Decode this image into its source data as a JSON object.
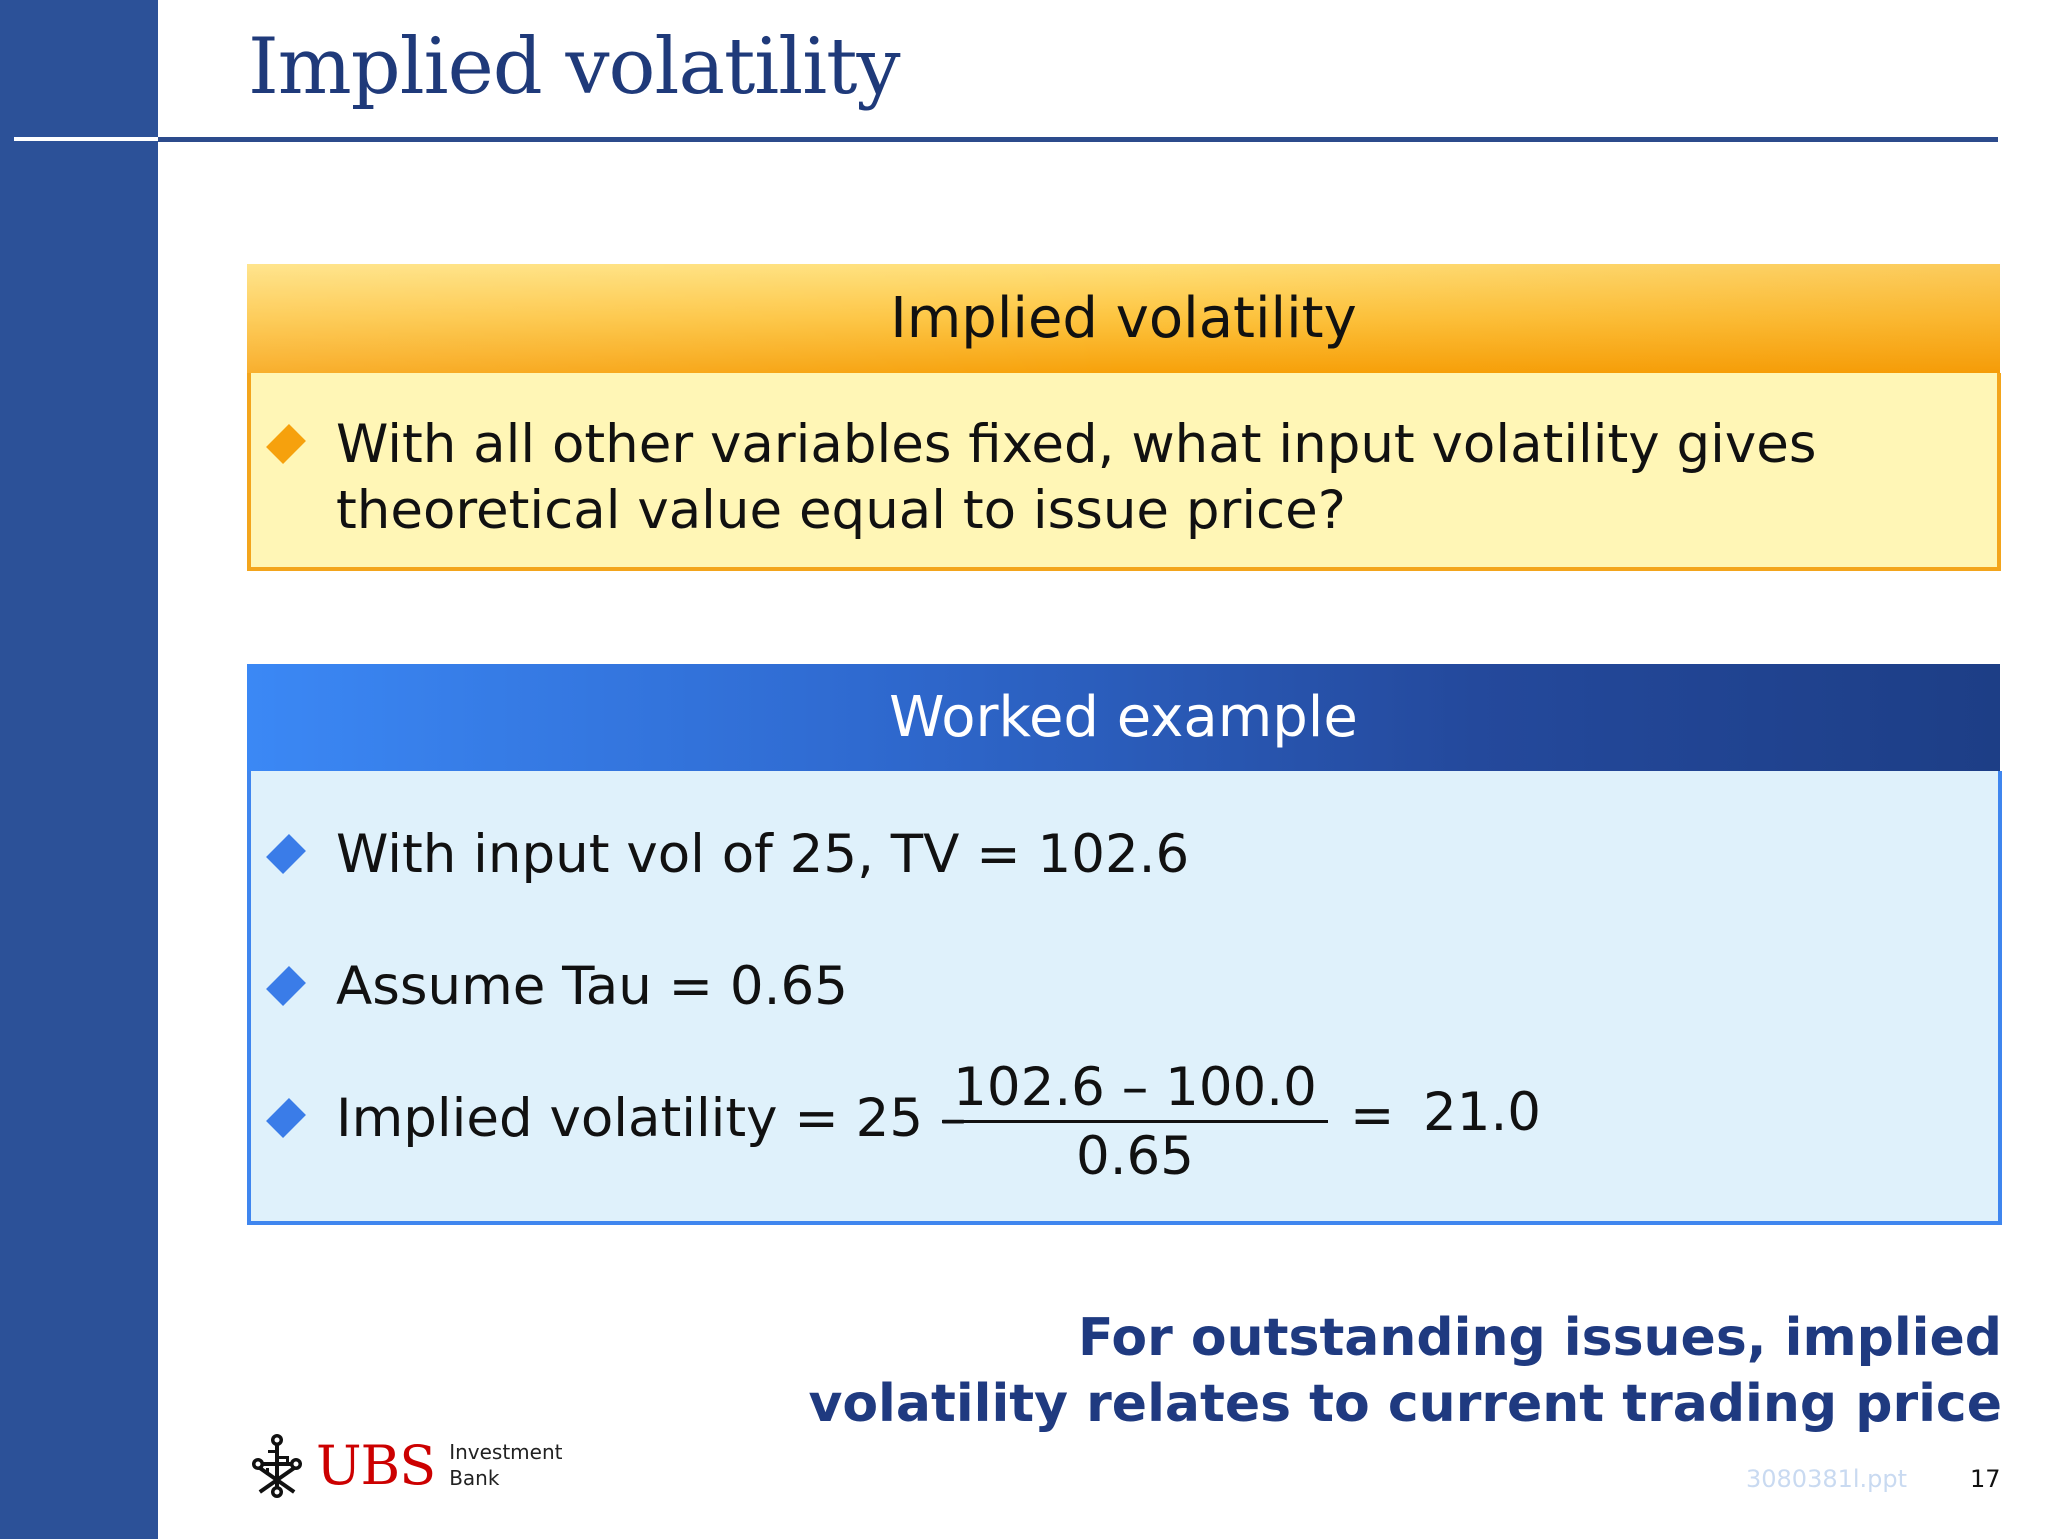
{
  "slide": {
    "title": "Implied volatility"
  },
  "definition_box": {
    "header": "Implied volatility",
    "bullets": [
      {
        "line1": "With all other variables fixed, what input volatility gives",
        "line2": "theoretical value equal to issue price?"
      }
    ]
  },
  "example_box": {
    "header": "Worked example",
    "bullets": [
      "With input vol of 25, TV = 102.6",
      "Assume Tau = 0.65",
      "Implied volatility = 25 –"
    ],
    "fraction": {
      "numerator": "102.6 – 100.0",
      "denominator": "0.65"
    },
    "equals": "=",
    "result": "21.0"
  },
  "takeaway": {
    "line1": "For outstanding issues, implied",
    "line2": "volatility relates to current trading price"
  },
  "footer": {
    "logo_text": "UBS",
    "logo_sub_line1": "Investment",
    "logo_sub_line2": "Bank",
    "doc_ref": "3080381l.ppt",
    "page_number": "17"
  },
  "colors": {
    "sidebar": "#2c5198",
    "title": "#1f3a7a",
    "orange_header": "#f7a10a",
    "yellow_body": "#fff6b6",
    "blue_header": "#2f6ad0",
    "blue_body": "#dff1fb",
    "takeaway": "#1f3a80",
    "logo_red": "#cc0000"
  }
}
